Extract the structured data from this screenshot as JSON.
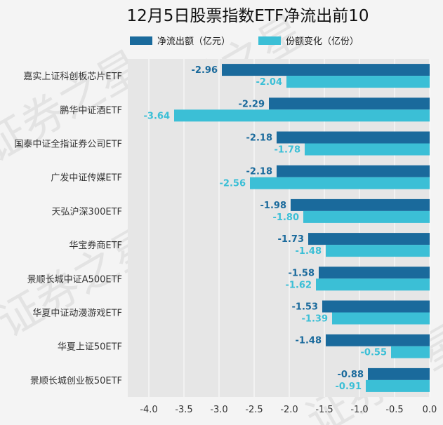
{
  "chart_data": {
    "type": "bar",
    "orientation": "horizontal",
    "title": "12月5日股票指数ETF净流出前10",
    "watermark": "证券之星",
    "categories": [
      "嘉实上证科创板芯片ETF",
      "鹏华中证酒ETF",
      "国泰中证全指证券公司ETF",
      "广发中证传媒ETF",
      "天弘沪深300ETF",
      "华宝券商ETF",
      "景顺长城中证A500ETF",
      "华夏中证动漫游戏ETF",
      "华夏上证50ETF",
      "景顺长城创业板50ETF"
    ],
    "series": [
      {
        "name": "净流出额（亿元）",
        "color": "#1a6a9c",
        "values": [
          -2.96,
          -2.29,
          -2.18,
          -2.18,
          -1.98,
          -1.73,
          -1.58,
          -1.53,
          -1.48,
          -0.88
        ],
        "labels": [
          "-2.96",
          "-2.29",
          "-2.18",
          "-2.18",
          "-1.98",
          "-1.73",
          "-1.58",
          "-1.53",
          "-1.48",
          "-0.88"
        ]
      },
      {
        "name": "份额变化（亿份）",
        "color": "#3bbfd6",
        "values": [
          -2.04,
          -3.64,
          -1.78,
          -2.56,
          -1.8,
          -1.48,
          -1.62,
          -1.39,
          -0.55,
          -0.91
        ],
        "labels": [
          "-2.04",
          "-3.64",
          "-1.78",
          "-2.56",
          "-1.80",
          "-1.48",
          "-1.62",
          "-1.39",
          "-0.55",
          "-0.91"
        ]
      }
    ],
    "xlim": [
      -4.3,
      0.0
    ],
    "xticks": [
      -4.0,
      -3.5,
      -3.0,
      -2.5,
      -2.0,
      -1.5,
      -1.0,
      -0.5,
      0.0
    ],
    "xtick_labels": [
      "-4.0",
      "-3.5",
      "-3.0",
      "-2.5",
      "-2.0",
      "-1.5",
      "-1.0",
      "-0.5",
      "0.0"
    ],
    "grid": true,
    "legend_position": "top"
  }
}
